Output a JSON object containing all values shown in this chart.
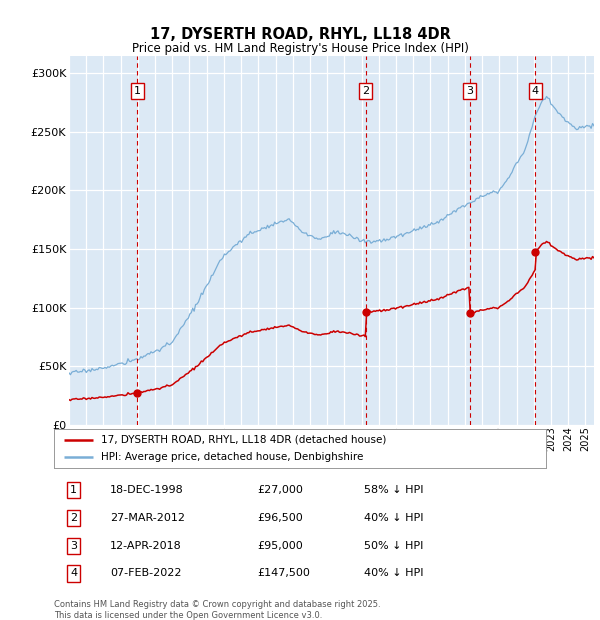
{
  "title": "17, DYSERTH ROAD, RHYL, LL18 4DR",
  "subtitle": "Price paid vs. HM Land Registry's House Price Index (HPI)",
  "ytick_values": [
    0,
    50000,
    100000,
    150000,
    200000,
    250000,
    300000
  ],
  "ylim": [
    0,
    315000
  ],
  "xlim_start": 1995.0,
  "xlim_end": 2025.5,
  "bg_color": "#dce9f5",
  "legend_entries": [
    "17, DYSERTH ROAD, RHYL, LL18 4DR (detached house)",
    "HPI: Average price, detached house, Denbighshire"
  ],
  "legend_colors": [
    "#cc0000",
    "#6699cc"
  ],
  "transactions": [
    {
      "num": 1,
      "date_dec": 1998.97,
      "price": 27000,
      "label": "1"
    },
    {
      "num": 2,
      "date_dec": 2012.24,
      "price": 96500,
      "label": "2"
    },
    {
      "num": 3,
      "date_dec": 2018.28,
      "price": 95000,
      "label": "3"
    },
    {
      "num": 4,
      "date_dec": 2022.1,
      "price": 147500,
      "label": "4"
    }
  ],
  "table_data": [
    [
      "1",
      "18-DEC-1998",
      "£27,000",
      "58% ↓ HPI"
    ],
    [
      "2",
      "27-MAR-2012",
      "£96,500",
      "40% ↓ HPI"
    ],
    [
      "3",
      "12-APR-2018",
      "£95,000",
      "50% ↓ HPI"
    ],
    [
      "4",
      "07-FEB-2022",
      "£147,500",
      "40% ↓ HPI"
    ]
  ],
  "footer": "Contains HM Land Registry data © Crown copyright and database right 2025.\nThis data is licensed under the Open Government Licence v3.0.",
  "red_line_color": "#cc0000",
  "blue_line_color": "#7aaed6",
  "marker_box_color": "#cc0000",
  "vline_color": "#cc0000",
  "hpi_anchors": [
    [
      1995.0,
      44000
    ],
    [
      1996.0,
      46000
    ],
    [
      1997.5,
      50000
    ],
    [
      1999.0,
      56000
    ],
    [
      2001.0,
      70000
    ],
    [
      2002.5,
      105000
    ],
    [
      2004.0,
      145000
    ],
    [
      2005.5,
      163000
    ],
    [
      2007.0,
      172000
    ],
    [
      2007.8,
      175000
    ],
    [
      2008.5,
      165000
    ],
    [
      2009.5,
      158000
    ],
    [
      2010.5,
      165000
    ],
    [
      2011.0,
      163000
    ],
    [
      2012.0,
      157000
    ],
    [
      2012.5,
      156000
    ],
    [
      2013.5,
      158000
    ],
    [
      2014.5,
      163000
    ],
    [
      2015.5,
      168000
    ],
    [
      2016.5,
      174000
    ],
    [
      2017.5,
      183000
    ],
    [
      2018.3,
      190000
    ],
    [
      2019.0,
      196000
    ],
    [
      2020.0,
      200000
    ],
    [
      2020.5,
      210000
    ],
    [
      2021.5,
      235000
    ],
    [
      2022.0,
      260000
    ],
    [
      2022.5,
      277000
    ],
    [
      2022.8,
      280000
    ],
    [
      2023.3,
      268000
    ],
    [
      2024.0,
      258000
    ],
    [
      2024.5,
      253000
    ],
    [
      2025.0,
      255000
    ]
  ]
}
